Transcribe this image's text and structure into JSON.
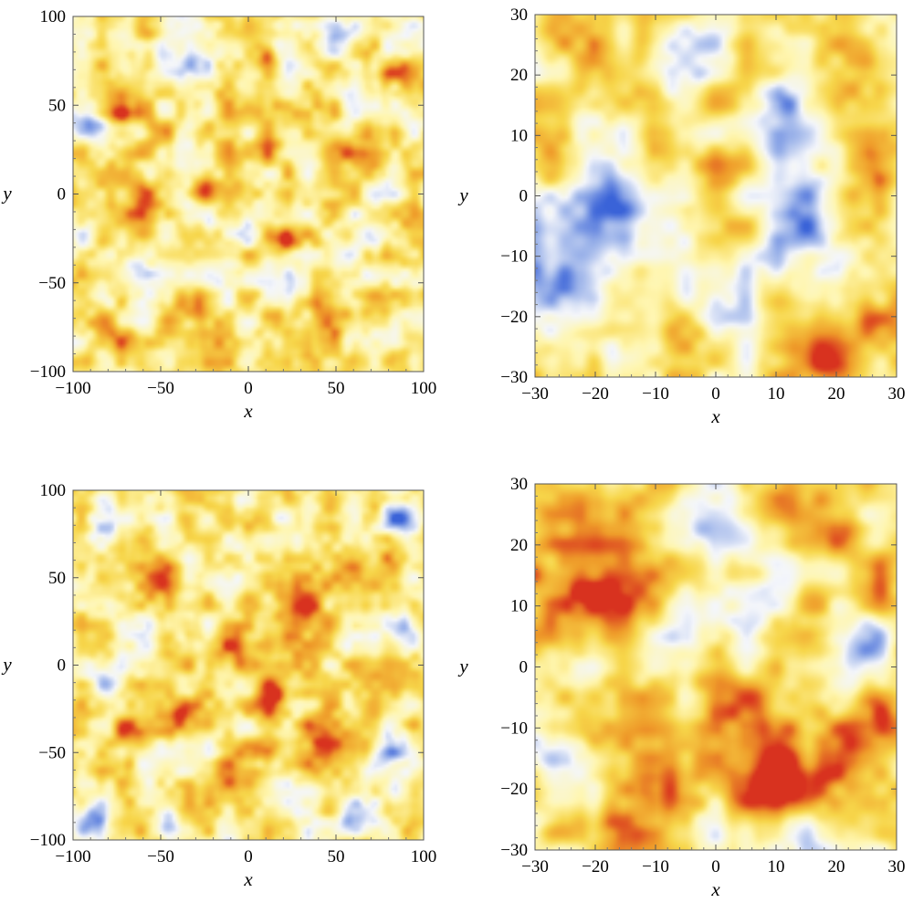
{
  "chart_data": [
    {
      "type": "heatmap",
      "title": "",
      "xlabel": "x",
      "ylabel": "y",
      "xlim": [
        -100,
        100
      ],
      "ylim": [
        -100,
        100
      ],
      "xticks": [
        -100,
        -50,
        0,
        50,
        100
      ],
      "yticks": [
        -100,
        -50,
        0,
        50,
        100
      ],
      "colorscale": [
        "#3a63d8",
        "#9db4ea",
        "#f4f6fb",
        "#fff6b0",
        "#f7d64a",
        "#ef9c2a",
        "#d8321f"
      ],
      "features": [
        {
          "x": -93,
          "y": 40,
          "v": -1.0,
          "r": 6
        },
        {
          "x": 10,
          "y": 78,
          "v": 1.0,
          "r": 5
        },
        {
          "x": -72,
          "y": 45,
          "v": 0.8,
          "r": 6
        },
        {
          "x": -52,
          "y": 35,
          "v": 0.7,
          "r": 6
        },
        {
          "x": -28,
          "y": 3,
          "v": 0.8,
          "r": 6
        },
        {
          "x": 20,
          "y": -26,
          "v": 0.9,
          "r": 5
        },
        {
          "x": -35,
          "y": -62,
          "v": 1.0,
          "r": 8
        },
        {
          "x": 28,
          "y": -50,
          "v": -0.8,
          "r": 6
        },
        {
          "x": 45,
          "y": -70,
          "v": 0.8,
          "r": 7
        },
        {
          "x": -65,
          "y": -42,
          "v": -0.6,
          "r": 8
        },
        {
          "x": -30,
          "y": 75,
          "v": -0.6,
          "r": 6
        },
        {
          "x": 50,
          "y": 85,
          "v": -0.6,
          "r": 6
        },
        {
          "x": 85,
          "y": 65,
          "v": 0.6,
          "r": 7
        },
        {
          "x": 60,
          "y": 25,
          "v": 0.5,
          "r": 10
        },
        {
          "x": -80,
          "y": -80,
          "v": 0.6,
          "r": 9
        },
        {
          "x": 80,
          "y": -60,
          "v": 0.5,
          "r": 9
        },
        {
          "x": -10,
          "y": -20,
          "v": -0.5,
          "r": 10
        },
        {
          "x": 0,
          "y": 20,
          "v": 0.4,
          "r": 14
        },
        {
          "x": -60,
          "y": 0,
          "v": 0.5,
          "r": 12
        },
        {
          "x": 70,
          "y": -20,
          "v": -0.4,
          "r": 10
        }
      ]
    },
    {
      "type": "heatmap",
      "title": "",
      "xlabel": "x",
      "ylabel": "y",
      "xlim": [
        -30,
        30
      ],
      "ylim": [
        -30,
        30
      ],
      "xticks": [
        -30,
        -20,
        -10,
        0,
        10,
        20,
        30
      ],
      "yticks": [
        -30,
        -20,
        -10,
        0,
        10,
        20,
        30
      ],
      "colorscale": [
        "#3a63d8",
        "#9db4ea",
        "#f4f6fb",
        "#fff6b0",
        "#f7d64a",
        "#ef9c2a",
        "#d8321f"
      ],
      "features": [
        {
          "x": -5,
          "y": 24,
          "v": -0.8,
          "r": 5
        },
        {
          "x": 12,
          "y": 7,
          "v": -1.0,
          "r": 6
        },
        {
          "x": 14,
          "y": 18,
          "v": -0.7,
          "r": 4
        },
        {
          "x": -27,
          "y": -12,
          "v": -1.0,
          "r": 6
        },
        {
          "x": -20,
          "y": -2,
          "v": -0.8,
          "r": 6
        },
        {
          "x": -10,
          "y": -5,
          "v": -0.7,
          "r": 6
        },
        {
          "x": 0,
          "y": -17,
          "v": -0.8,
          "r": 4
        },
        {
          "x": 14,
          "y": -6,
          "v": -0.7,
          "r": 5
        },
        {
          "x": 19,
          "y": -27,
          "v": 1.0,
          "r": 4
        },
        {
          "x": 22,
          "y": 21,
          "v": 0.8,
          "r": 4
        },
        {
          "x": -5,
          "y": -22,
          "v": 0.5,
          "r": 6
        },
        {
          "x": 28,
          "y": -20,
          "v": 0.5,
          "r": 5
        },
        {
          "x": -28,
          "y": 5,
          "v": 0.5,
          "r": 4
        },
        {
          "x": 5,
          "y": 5,
          "v": 0.4,
          "r": 6
        },
        {
          "x": -15,
          "y": 25,
          "v": 0.5,
          "r": 5
        },
        {
          "x": 27,
          "y": 5,
          "v": 0.5,
          "r": 4
        }
      ]
    },
    {
      "type": "heatmap",
      "title": "",
      "xlabel": "x",
      "ylabel": "y",
      "xlim": [
        -100,
        100
      ],
      "ylim": [
        -100,
        100
      ],
      "xticks": [
        -100,
        -50,
        0,
        50,
        100
      ],
      "yticks": [
        -100,
        -50,
        0,
        50,
        100
      ],
      "colorscale": [
        "#3a63d8",
        "#9db4ea",
        "#f4f6fb",
        "#fff6b0",
        "#f7d64a",
        "#ef9c2a",
        "#d8321f"
      ],
      "features": [
        {
          "x": -10,
          "y": 10,
          "v": 0.9,
          "r": 10
        },
        {
          "x": 15,
          "y": -18,
          "v": 1.0,
          "r": 8
        },
        {
          "x": 40,
          "y": -40,
          "v": 0.9,
          "r": 10
        },
        {
          "x": -40,
          "y": -30,
          "v": 0.8,
          "r": 10
        },
        {
          "x": -70,
          "y": -40,
          "v": 0.7,
          "r": 8
        },
        {
          "x": 30,
          "y": 30,
          "v": 0.7,
          "r": 10
        },
        {
          "x": -50,
          "y": 50,
          "v": 0.6,
          "r": 10
        },
        {
          "x": -90,
          "y": -90,
          "v": -1.0,
          "r": 7
        },
        {
          "x": -45,
          "y": -90,
          "v": -0.9,
          "r": 6
        },
        {
          "x": 60,
          "y": -85,
          "v": -0.9,
          "r": 7
        },
        {
          "x": 85,
          "y": 85,
          "v": -0.8,
          "r": 6
        },
        {
          "x": -85,
          "y": 80,
          "v": -0.7,
          "r": 7
        },
        {
          "x": 80,
          "y": -50,
          "v": -0.7,
          "r": 7
        },
        {
          "x": -80,
          "y": -10,
          "v": -0.7,
          "r": 6
        },
        {
          "x": 20,
          "y": 85,
          "v": -0.6,
          "r": 6
        },
        {
          "x": 90,
          "y": 20,
          "v": -0.7,
          "r": 6
        },
        {
          "x": 0,
          "y": -60,
          "v": 0.6,
          "r": 10
        },
        {
          "x": 70,
          "y": 60,
          "v": 0.5,
          "r": 10
        }
      ]
    },
    {
      "type": "heatmap",
      "title": "",
      "xlabel": "x",
      "ylabel": "y",
      "xlim": [
        -30,
        30
      ],
      "ylim": [
        -30,
        30
      ],
      "xticks": [
        -30,
        -20,
        -10,
        0,
        10,
        20,
        30
      ],
      "yticks": [
        -30,
        -20,
        -10,
        0,
        10,
        20,
        30
      ],
      "colorscale": [
        "#3a63d8",
        "#9db4ea",
        "#f4f6fb",
        "#fff6b0",
        "#f7d64a",
        "#ef9c2a",
        "#d8321f"
      ],
      "features": [
        {
          "x": -16,
          "y": 13,
          "v": 1.0,
          "r": 5
        },
        {
          "x": -25,
          "y": 13,
          "v": 0.7,
          "r": 5
        },
        {
          "x": 16,
          "y": -19,
          "v": 1.0,
          "r": 5
        },
        {
          "x": 9,
          "y": -19,
          "v": 0.8,
          "r": 5
        },
        {
          "x": 27,
          "y": -9,
          "v": 1.0,
          "r": 4
        },
        {
          "x": -12,
          "y": -17,
          "v": 0.7,
          "r": 5
        },
        {
          "x": 5,
          "y": -5,
          "v": 0.6,
          "r": 5
        },
        {
          "x": 23,
          "y": 2,
          "v": -1.0,
          "r": 4
        },
        {
          "x": -4,
          "y": 5,
          "v": -0.8,
          "r": 4
        },
        {
          "x": 8,
          "y": 11,
          "v": -0.6,
          "r": 4
        },
        {
          "x": -1,
          "y": 24,
          "v": -0.6,
          "r": 4
        },
        {
          "x": 15,
          "y": -28,
          "v": -0.7,
          "r": 5
        },
        {
          "x": -27,
          "y": -15,
          "v": -0.5,
          "r": 4
        },
        {
          "x": 15,
          "y": 25,
          "v": 0.5,
          "r": 5
        },
        {
          "x": -15,
          "y": -28,
          "v": 0.4,
          "r": 5
        },
        {
          "x": 28,
          "y": 15,
          "v": 0.5,
          "r": 4
        }
      ]
    }
  ]
}
